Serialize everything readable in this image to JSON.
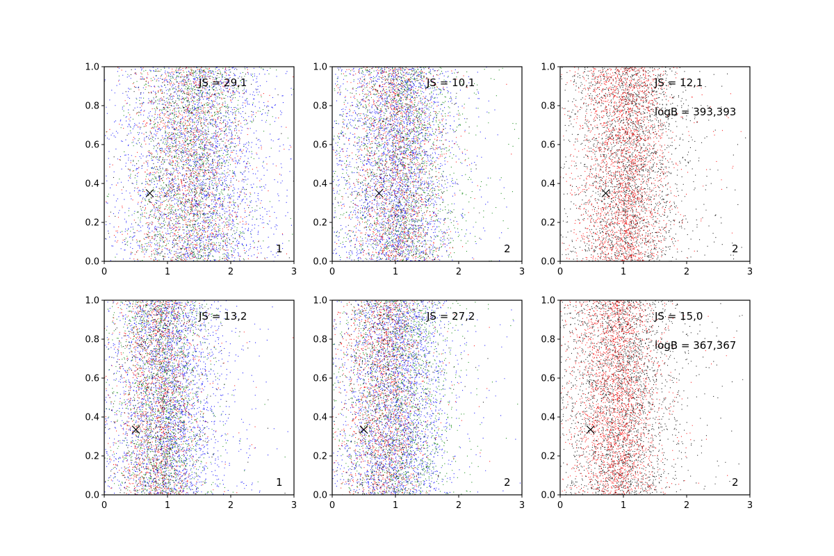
{
  "figure": {
    "layout": "2x3 grid of scatter plots"
  },
  "chart_data": [
    {
      "type": "scatter",
      "panel_label": "1",
      "annotations": [
        "JS = 29,1"
      ],
      "xlim": [
        0,
        3
      ],
      "ylim": [
        0,
        1
      ],
      "xticks": [
        "0",
        "1",
        "2",
        "3"
      ],
      "yticks": [
        "0.0",
        "0.2",
        "0.4",
        "0.6",
        "0.8",
        "1.0"
      ],
      "marker": {
        "x": 0.72,
        "y": 0.35,
        "symbol": "x"
      },
      "series": [
        {
          "color": "#0000ff",
          "count": 2600,
          "center": 1.4,
          "spread": 0.6
        },
        {
          "color": "#008000",
          "count": 1500,
          "center": 1.3,
          "spread": 0.45
        },
        {
          "color": "#ff0000",
          "count": 1300,
          "center": 1.25,
          "spread": 0.45
        },
        {
          "color": "#000000",
          "count": 700,
          "center": 1.25,
          "spread": 0.45
        }
      ]
    },
    {
      "type": "scatter",
      "panel_label": "2",
      "annotations": [
        "JS = 10,1"
      ],
      "xlim": [
        0,
        3
      ],
      "ylim": [
        0,
        1
      ],
      "xticks": [
        "0",
        "1",
        "2",
        "3"
      ],
      "yticks": [
        "0.0",
        "0.2",
        "0.4",
        "0.6",
        "0.8",
        "1.0"
      ],
      "marker": {
        "x": 0.74,
        "y": 0.35,
        "symbol": "x"
      },
      "series": [
        {
          "color": "#0000ff",
          "count": 2600,
          "center": 0.95,
          "spread": 0.45
        },
        {
          "color": "#008000",
          "count": 1500,
          "center": 1.05,
          "spread": 0.5
        },
        {
          "color": "#ff0000",
          "count": 1300,
          "center": 0.95,
          "spread": 0.38
        },
        {
          "color": "#000000",
          "count": 700,
          "center": 0.95,
          "spread": 0.38
        }
      ]
    },
    {
      "type": "scatter",
      "panel_label": "2",
      "annotations": [
        "JS = 12,1",
        "logB = 393,393"
      ],
      "xlim": [
        0,
        3
      ],
      "ylim": [
        0,
        1
      ],
      "xticks": [
        "0",
        "1",
        "2",
        "3"
      ],
      "yticks": [
        "0.0",
        "0.2",
        "0.4",
        "0.6",
        "0.8",
        "1.0"
      ],
      "marker": {
        "x": 0.72,
        "y": 0.35,
        "symbol": "x"
      },
      "series": [
        {
          "color": "#000000",
          "count": 2600,
          "center": 1.0,
          "spread": 0.45
        },
        {
          "color": "#ff0000",
          "count": 2300,
          "center": 0.95,
          "spread": 0.35
        }
      ]
    },
    {
      "type": "scatter",
      "panel_label": "1",
      "annotations": [
        "JS = 13,2"
      ],
      "xlim": [
        0,
        3
      ],
      "ylim": [
        0,
        1
      ],
      "xticks": [
        "0",
        "1",
        "2",
        "3"
      ],
      "yticks": [
        "0.0",
        "0.2",
        "0.4",
        "0.6",
        "0.8",
        "1.0"
      ],
      "marker": {
        "x": 0.5,
        "y": 0.335,
        "symbol": "x"
      },
      "series": [
        {
          "color": "#0000ff",
          "count": 2600,
          "center": 0.95,
          "spread": 0.45
        },
        {
          "color": "#008000",
          "count": 1500,
          "center": 0.85,
          "spread": 0.35
        },
        {
          "color": "#ff0000",
          "count": 1300,
          "center": 0.8,
          "spread": 0.33
        },
        {
          "color": "#000000",
          "count": 700,
          "center": 0.8,
          "spread": 0.33
        }
      ]
    },
    {
      "type": "scatter",
      "panel_label": "2",
      "annotations": [
        "JS = 27,2"
      ],
      "xlim": [
        0,
        3
      ],
      "ylim": [
        0,
        1
      ],
      "xticks": [
        "0",
        "1",
        "2",
        "3"
      ],
      "yticks": [
        "0.0",
        "0.2",
        "0.4",
        "0.6",
        "0.8",
        "1.0"
      ],
      "marker": {
        "x": 0.5,
        "y": 0.335,
        "symbol": "x"
      },
      "series": [
        {
          "color": "#0000ff",
          "count": 2600,
          "center": 0.95,
          "spread": 0.42
        },
        {
          "color": "#008000",
          "count": 1500,
          "center": 1.0,
          "spread": 0.45
        },
        {
          "color": "#ff0000",
          "count": 1300,
          "center": 0.75,
          "spread": 0.33
        },
        {
          "color": "#000000",
          "count": 700,
          "center": 0.8,
          "spread": 0.33
        }
      ]
    },
    {
      "type": "scatter",
      "panel_label": "2",
      "annotations": [
        "JS = 15,0",
        "logB = 367,367"
      ],
      "xlim": [
        0,
        3
      ],
      "ylim": [
        0,
        1
      ],
      "xticks": [
        "0",
        "1",
        "2",
        "3"
      ],
      "yticks": [
        "0.0",
        "0.2",
        "0.4",
        "0.6",
        "0.8",
        "1.0"
      ],
      "marker": {
        "x": 0.48,
        "y": 0.335,
        "symbol": "x"
      },
      "series": [
        {
          "color": "#000000",
          "count": 2600,
          "center": 0.9,
          "spread": 0.45
        },
        {
          "color": "#ff0000",
          "count": 2300,
          "center": 0.82,
          "spread": 0.33
        }
      ]
    }
  ]
}
